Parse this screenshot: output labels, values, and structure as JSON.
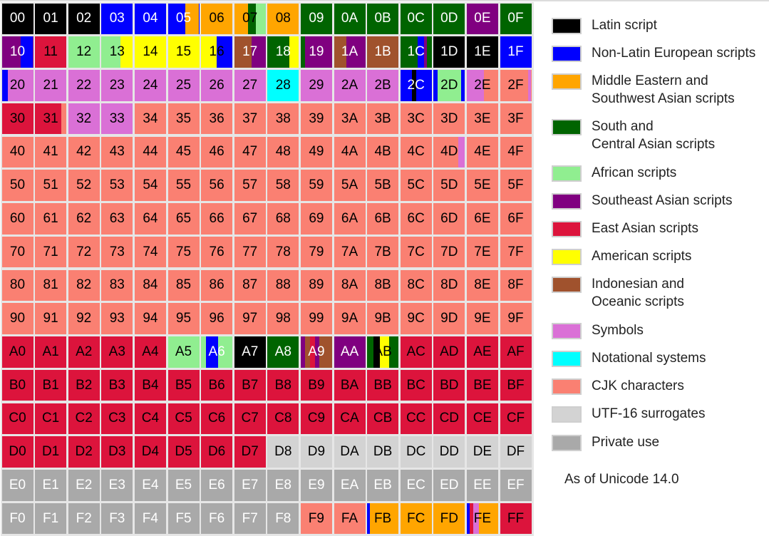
{
  "colors": {
    "latin": "#000000",
    "nonlatin_eu": "#0000ff",
    "mideast": "#ffa500",
    "south_central": "#006400",
    "african": "#90ee90",
    "se_asian": "#800080",
    "east_asian": "#dc143c",
    "american": "#ffff00",
    "indo_oceanic": "#a0522d",
    "symbols": "#da70d6",
    "notational": "#00ffff",
    "cjk": "#fa8072",
    "surrogates": "#d3d3d3",
    "private": "#a9a9a9"
  },
  "legend": [
    {
      "key": "latin",
      "lines": [
        "Latin script"
      ]
    },
    {
      "key": "nonlatin_eu",
      "lines": [
        "Non-Latin European scripts"
      ]
    },
    {
      "key": "mideast",
      "lines": [
        "Middle Eastern and",
        "Southwest Asian scripts"
      ]
    },
    {
      "key": "south_central",
      "lines": [
        "South and",
        "Central Asian scripts"
      ]
    },
    {
      "key": "african",
      "lines": [
        "African scripts"
      ]
    },
    {
      "key": "se_asian",
      "lines": [
        "Southeast Asian scripts"
      ]
    },
    {
      "key": "east_asian",
      "lines": [
        "East Asian scripts"
      ]
    },
    {
      "key": "american",
      "lines": [
        "American scripts"
      ]
    },
    {
      "key": "indo_oceanic",
      "lines": [
        "Indonesian and",
        "Oceanic scripts"
      ]
    },
    {
      "key": "symbols",
      "lines": [
        "Symbols"
      ]
    },
    {
      "key": "notational",
      "lines": [
        "Notational systems"
      ]
    },
    {
      "key": "cjk",
      "lines": [
        "CJK characters"
      ]
    },
    {
      "key": "surrogates",
      "lines": [
        "UTF-16 surrogates"
      ]
    },
    {
      "key": "private",
      "lines": [
        "Private use"
      ]
    }
  ],
  "note": "As of Unicode 14.0",
  "cells": {
    "00": {
      "fill": "latin",
      "text": "#ffffff"
    },
    "01": {
      "fill": "latin",
      "text": "#ffffff"
    },
    "02": {
      "fill": "latin",
      "text": "#ffffff"
    },
    "03": {
      "fill": "nonlatin_eu",
      "text": "#ffffff"
    },
    "04": {
      "fill": "nonlatin_eu",
      "text": "#ffffff"
    },
    "05": {
      "fill": "nonlatin_eu",
      "text": "#ffffff",
      "stripes": [
        [
          0.55,
          1.0,
          "mideast"
        ]
      ]
    },
    "06": {
      "fill": "mideast",
      "text": "#000000"
    },
    "07": {
      "fill": "mideast",
      "text": "#000000",
      "stripes": [
        [
          0.45,
          0.7,
          "south_central"
        ],
        [
          0.7,
          1.0,
          "african"
        ]
      ]
    },
    "08": {
      "fill": "mideast",
      "text": "#000000"
    },
    "09": {
      "fill": "south_central",
      "text": "#ffffff"
    },
    "0A": {
      "fill": "south_central",
      "text": "#ffffff"
    },
    "0B": {
      "fill": "south_central",
      "text": "#ffffff"
    },
    "0C": {
      "fill": "south_central",
      "text": "#ffffff"
    },
    "0D": {
      "fill": "south_central",
      "text": "#ffffff"
    },
    "0E": {
      "fill": "se_asian",
      "text": "#ffffff"
    },
    "0F": {
      "fill": "south_central",
      "text": "#ffffff"
    },
    "10": {
      "fill": "se_asian",
      "text": "#ffffff",
      "stripes": [
        [
          0.6,
          1.0,
          "nonlatin_eu"
        ]
      ]
    },
    "11": {
      "fill": "east_asian",
      "text": "#000000"
    },
    "12": {
      "fill": "african",
      "text": "#000000"
    },
    "13": {
      "fill": "african",
      "text": "#000000",
      "stripes": [
        [
          0.6,
          1.0,
          "american"
        ]
      ]
    },
    "14": {
      "fill": "american",
      "text": "#000000"
    },
    "15": {
      "fill": "american",
      "text": "#000000"
    },
    "16": {
      "fill": "american",
      "text": "#000000",
      "stripes": [
        [
          0.5,
          1.0,
          "nonlatin_eu"
        ]
      ]
    },
    "17": {
      "fill": "indo_oceanic",
      "text": "#ffffff",
      "stripes": [
        [
          0.55,
          1.0,
          "se_asian"
        ]
      ]
    },
    "18": {
      "fill": "south_central",
      "text": "#ffffff",
      "stripes": [
        [
          0.7,
          1.0,
          "american"
        ]
      ]
    },
    "19": {
      "fill": "se_asian",
      "text": "#ffffff",
      "stripes": [
        [
          0.0,
          0.15,
          "south_central"
        ]
      ]
    },
    "1A": {
      "fill": "se_asian",
      "text": "#ffffff",
      "stripes": [
        [
          0.0,
          0.4,
          "indo_oceanic"
        ]
      ]
    },
    "1B": {
      "fill": "indo_oceanic",
      "text": "#ffffff"
    },
    "1C": {
      "fill": "south_central",
      "text": "#ffffff",
      "stripes": [
        [
          0.55,
          0.75,
          "nonlatin_eu"
        ],
        [
          0.75,
          0.85,
          "se_asian"
        ]
      ]
    },
    "1D": {
      "fill": "latin",
      "text": "#ffffff"
    },
    "1E": {
      "fill": "latin",
      "text": "#ffffff"
    },
    "1F": {
      "fill": "nonlatin_eu",
      "text": "#ffffff"
    },
    "20": {
      "fill": "symbols",
      "text": "#000000",
      "stripes": [
        [
          0.0,
          0.2,
          "nonlatin_eu"
        ]
      ]
    },
    "21": {
      "fill": "symbols",
      "text": "#000000"
    },
    "22": {
      "fill": "symbols",
      "text": "#000000"
    },
    "23": {
      "fill": "symbols",
      "text": "#000000"
    },
    "24": {
      "fill": "symbols",
      "text": "#000000"
    },
    "25": {
      "fill": "symbols",
      "text": "#000000"
    },
    "26": {
      "fill": "symbols",
      "text": "#000000"
    },
    "27": {
      "fill": "symbols",
      "text": "#000000"
    },
    "28": {
      "fill": "notational",
      "text": "#000000"
    },
    "29": {
      "fill": "symbols",
      "text": "#000000"
    },
    "2A": {
      "fill": "symbols",
      "text": "#000000"
    },
    "2B": {
      "fill": "symbols",
      "text": "#000000"
    },
    "2C": {
      "fill": "nonlatin_eu",
      "text": "#ffffff",
      "stripes": [
        [
          0.38,
          0.5,
          "latin"
        ]
      ]
    },
    "2D": {
      "fill": "african",
      "text": "#000000",
      "stripes": [
        [
          0.0,
          0.12,
          "nonlatin_eu"
        ],
        [
          0.88,
          1.0,
          "nonlatin_eu"
        ]
      ]
    },
    "2E": {
      "fill": "symbols",
      "text": "#000000",
      "stripes": [
        [
          0.55,
          1.0,
          "cjk"
        ]
      ]
    },
    "2F": {
      "fill": "cjk",
      "text": "#000000",
      "stripes": [
        [
          0.9,
          1.0,
          "symbols"
        ]
      ]
    },
    "30": {
      "fill": "east_asian",
      "text": "#000000"
    },
    "31": {
      "fill": "east_asian",
      "text": "#000000",
      "stripes": [
        [
          0.85,
          1.0,
          "cjk"
        ]
      ]
    },
    "32": {
      "fill": "symbols",
      "text": "#000000"
    },
    "33": {
      "fill": "symbols",
      "text": "#000000"
    },
    "4D": {
      "fill": "cjk",
      "text": "#000000",
      "stripes": [
        [
          0.78,
          1.0,
          "symbols"
        ]
      ]
    },
    "A0": {
      "fill": "east_asian",
      "text": "#000000"
    },
    "A1": {
      "fill": "east_asian",
      "text": "#000000"
    },
    "A2": {
      "fill": "east_asian",
      "text": "#000000"
    },
    "A3": {
      "fill": "east_asian",
      "text": "#000000"
    },
    "A4": {
      "fill": "east_asian",
      "text": "#000000"
    },
    "A5": {
      "fill": "african",
      "text": "#000000"
    },
    "A6": {
      "fill": "african",
      "text": "#ffffff",
      "stripes": [
        [
          0.15,
          0.55,
          "nonlatin_eu"
        ]
      ]
    },
    "A7": {
      "fill": "latin",
      "text": "#ffffff"
    },
    "A8": {
      "fill": "south_central",
      "text": "#ffffff"
    },
    "A9": {
      "fill": "indo_oceanic",
      "text": "#ffffff",
      "stripes": [
        [
          0.0,
          0.15,
          "se_asian"
        ],
        [
          0.3,
          0.45,
          "east_asian"
        ],
        [
          0.45,
          0.6,
          "se_asian"
        ]
      ]
    },
    "AA": {
      "fill": "se_asian",
      "text": "#ffffff"
    },
    "AB": {
      "fill": "south_central",
      "text": "#000000",
      "stripes": [
        [
          0.2,
          0.4,
          "latin"
        ],
        [
          0.4,
          0.7,
          "american"
        ]
      ]
    },
    "AC": {
      "fill": "east_asian",
      "text": "#000000"
    },
    "AD": {
      "fill": "east_asian",
      "text": "#000000"
    },
    "AE": {
      "fill": "east_asian",
      "text": "#000000"
    },
    "AF": {
      "fill": "east_asian",
      "text": "#000000"
    },
    "D8": {
      "fill": "surrogates",
      "text": "#000000"
    },
    "D9": {
      "fill": "surrogates",
      "text": "#000000"
    },
    "DA": {
      "fill": "surrogates",
      "text": "#000000"
    },
    "DB": {
      "fill": "surrogates",
      "text": "#000000"
    },
    "DC": {
      "fill": "surrogates",
      "text": "#000000"
    },
    "DD": {
      "fill": "surrogates",
      "text": "#000000"
    },
    "DE": {
      "fill": "surrogates",
      "text": "#000000"
    },
    "DF": {
      "fill": "surrogates",
      "text": "#000000"
    },
    "F9": {
      "fill": "cjk",
      "text": "#000000"
    },
    "FA": {
      "fill": "cjk",
      "text": "#000000"
    },
    "FB": {
      "fill": "mideast",
      "text": "#000000",
      "stripes": [
        [
          0.0,
          0.1,
          "nonlatin_eu"
        ]
      ]
    },
    "FC": {
      "fill": "mideast",
      "text": "#000000"
    },
    "FD": {
      "fill": "mideast",
      "text": "#000000"
    },
    "FE": {
      "fill": "mideast",
      "text": "#000000",
      "stripes": [
        [
          0.0,
          0.1,
          "nonlatin_eu"
        ],
        [
          0.1,
          0.2,
          "east_asian"
        ],
        [
          0.2,
          0.4,
          "symbols"
        ]
      ]
    },
    "FF": {
      "fill": "east_asian",
      "text": "#000000"
    }
  },
  "row_defaults": {
    "3": {
      "fill": "cjk",
      "text": "#000000"
    },
    "4": {
      "fill": "cjk",
      "text": "#000000"
    },
    "5": {
      "fill": "cjk",
      "text": "#000000"
    },
    "6": {
      "fill": "cjk",
      "text": "#000000"
    },
    "7": {
      "fill": "cjk",
      "text": "#000000"
    },
    "8": {
      "fill": "cjk",
      "text": "#000000"
    },
    "9": {
      "fill": "cjk",
      "text": "#000000"
    },
    "B": {
      "fill": "east_asian",
      "text": "#000000"
    },
    "C": {
      "fill": "east_asian",
      "text": "#000000"
    },
    "D": {
      "fill": "east_asian",
      "text": "#000000"
    },
    "E": {
      "fill": "private",
      "text": "#ffffff"
    },
    "F": {
      "fill": "private",
      "text": "#ffffff"
    }
  }
}
